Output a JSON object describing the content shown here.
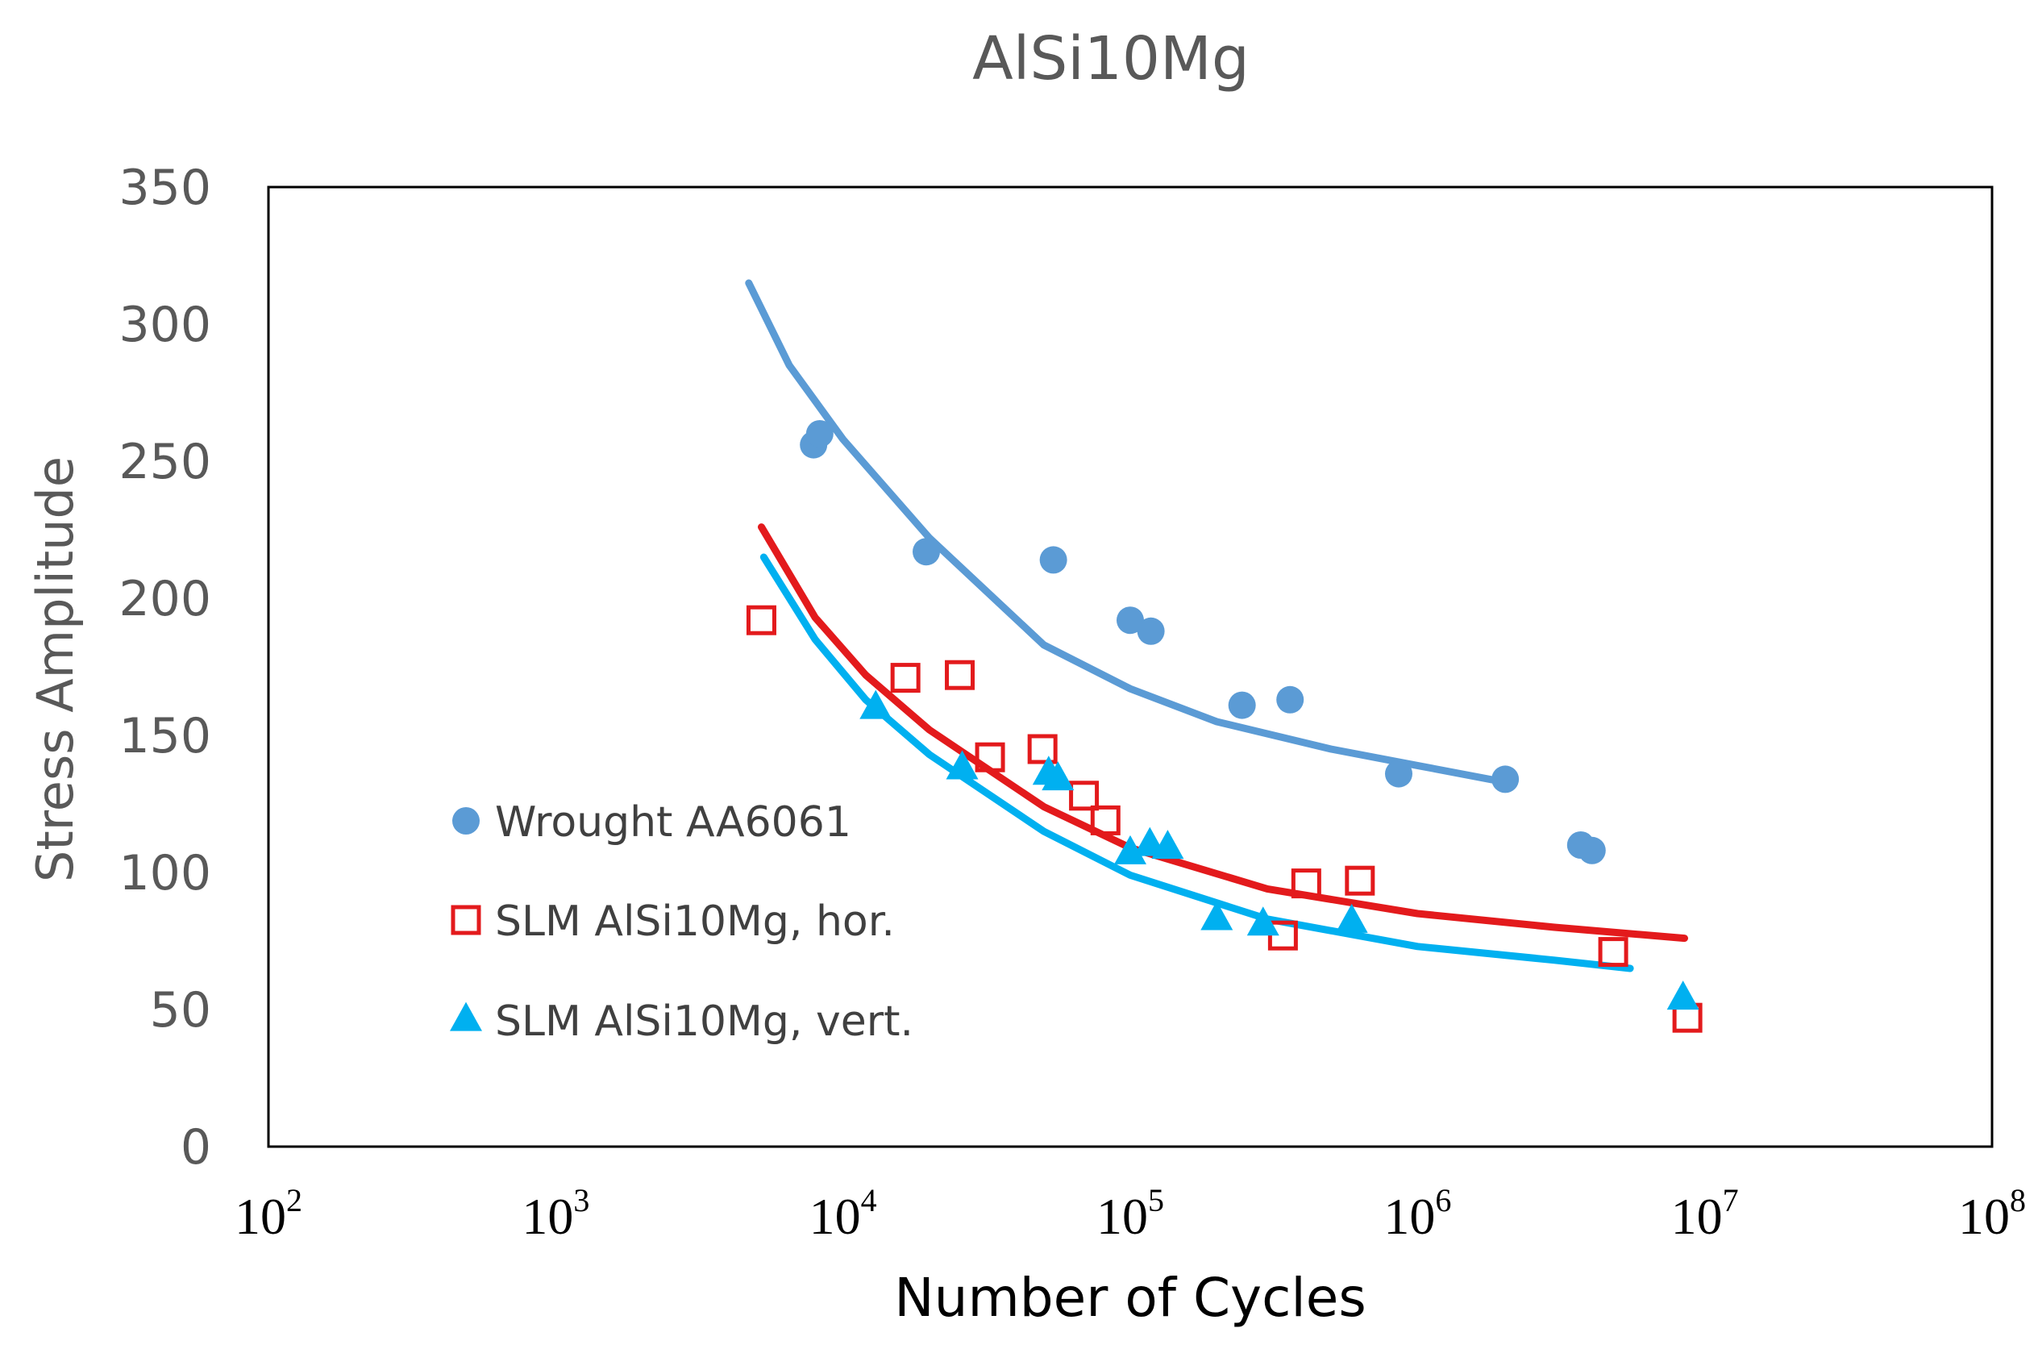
{
  "chart_data": {
    "type": "scatter",
    "title": "AlSi10Mg",
    "xlabel": "Number of Cycles",
    "ylabel": "Stress Amplitude",
    "xscale": "log",
    "xlim": [
      100,
      100000000
    ],
    "ylim": [
      0,
      350
    ],
    "grid": false,
    "legend_position": "left",
    "yticks": [
      "0",
      "50",
      "100",
      "150",
      "200",
      "250",
      "300",
      "350"
    ],
    "xticks": [
      {
        "base": "10",
        "exp": "2",
        "value": 100
      },
      {
        "base": "10",
        "exp": "3",
        "value": 1000
      },
      {
        "base": "10",
        "exp": "4",
        "value": 10000
      },
      {
        "base": "10",
        "exp": "5",
        "value": 100000
      },
      {
        "base": "10",
        "exp": "6",
        "value": 1000000
      },
      {
        "base": "10",
        "exp": "7",
        "value": 10000000
      },
      {
        "base": "10",
        "exp": "8",
        "value": 100000000
      }
    ],
    "series": [
      {
        "name": "Wrought AA6061",
        "marker": "circle",
        "color": "#5B9BD5",
        "points": [
          {
            "x": 7900,
            "y": 256
          },
          {
            "x": 8300,
            "y": 260
          },
          {
            "x": 19500,
            "y": 217
          },
          {
            "x": 54000,
            "y": 214
          },
          {
            "x": 100000,
            "y": 192
          },
          {
            "x": 118000,
            "y": 188
          },
          {
            "x": 245000,
            "y": 161
          },
          {
            "x": 360000,
            "y": 163
          },
          {
            "x": 860000,
            "y": 136
          },
          {
            "x": 2020000,
            "y": 134
          },
          {
            "x": 3700000,
            "y": 110
          },
          {
            "x": 4050000,
            "y": 108
          }
        ],
        "trend": [
          {
            "x": 4700,
            "y": 315
          },
          {
            "x": 6500,
            "y": 285
          },
          {
            "x": 10000,
            "y": 258
          },
          {
            "x": 20000,
            "y": 222
          },
          {
            "x": 50000,
            "y": 183
          },
          {
            "x": 100000,
            "y": 167
          },
          {
            "x": 200000,
            "y": 155
          },
          {
            "x": 500000,
            "y": 145
          },
          {
            "x": 1000000,
            "y": 139
          },
          {
            "x": 2000000,
            "y": 133
          }
        ]
      },
      {
        "name": "SLM AlSi10Mg, hor.",
        "marker": "square-open",
        "color": "#E31A1C",
        "points": [
          {
            "x": 5200,
            "y": 192
          },
          {
            "x": 16500,
            "y": 171
          },
          {
            "x": 25500,
            "y": 172
          },
          {
            "x": 32500,
            "y": 142
          },
          {
            "x": 49500,
            "y": 145
          },
          {
            "x": 69000,
            "y": 128
          },
          {
            "x": 82000,
            "y": 119
          },
          {
            "x": 340000,
            "y": 77
          },
          {
            "x": 410000,
            "y": 96
          },
          {
            "x": 630000,
            "y": 97
          },
          {
            "x": 4800000,
            "y": 71
          },
          {
            "x": 8700000,
            "y": 47
          }
        ],
        "trend": [
          {
            "x": 5200,
            "y": 226
          },
          {
            "x": 8000,
            "y": 193
          },
          {
            "x": 12000,
            "y": 172
          },
          {
            "x": 20000,
            "y": 152
          },
          {
            "x": 50000,
            "y": 124
          },
          {
            "x": 100000,
            "y": 109
          },
          {
            "x": 300000,
            "y": 94
          },
          {
            "x": 1000000,
            "y": 85
          },
          {
            "x": 3000000,
            "y": 80
          },
          {
            "x": 8500000,
            "y": 76
          }
        ]
      },
      {
        "name": "SLM AlSi10Mg, vert.",
        "marker": "triangle",
        "color": "#00B0F0",
        "points": [
          {
            "x": 13000,
            "y": 160
          },
          {
            "x": 26000,
            "y": 138
          },
          {
            "x": 52000,
            "y": 136
          },
          {
            "x": 56000,
            "y": 134
          },
          {
            "x": 100000,
            "y": 107
          },
          {
            "x": 117000,
            "y": 110
          },
          {
            "x": 135000,
            "y": 109
          },
          {
            "x": 200000,
            "y": 83
          },
          {
            "x": 290000,
            "y": 81
          },
          {
            "x": 590000,
            "y": 82
          },
          {
            "x": 8400000,
            "y": 54
          }
        ],
        "trend": [
          {
            "x": 5300,
            "y": 215
          },
          {
            "x": 8000,
            "y": 185
          },
          {
            "x": 12000,
            "y": 163
          },
          {
            "x": 20000,
            "y": 143
          },
          {
            "x": 50000,
            "y": 115
          },
          {
            "x": 100000,
            "y": 99
          },
          {
            "x": 300000,
            "y": 83
          },
          {
            "x": 1000000,
            "y": 73
          },
          {
            "x": 3000000,
            "y": 68
          },
          {
            "x": 5500000,
            "y": 65
          }
        ]
      }
    ]
  }
}
